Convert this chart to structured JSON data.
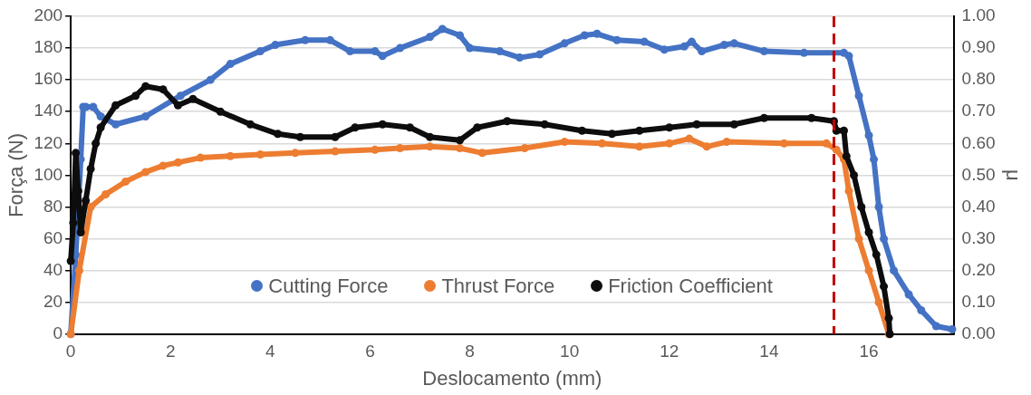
{
  "chart_data": {
    "type": "line",
    "xlabel": "Deslocamento (mm)",
    "ylabel": "Força (N)",
    "y2label": "μ",
    "xlim": [
      0,
      17.7
    ],
    "xticks": [
      0,
      2,
      4,
      6,
      8,
      10,
      12,
      14,
      16
    ],
    "ylim": [
      0,
      200
    ],
    "yticks": [
      0,
      20,
      40,
      60,
      80,
      100,
      120,
      140,
      160,
      180,
      200
    ],
    "y2lim": [
      0,
      1
    ],
    "y2ticks": [
      {
        "value": 0,
        "label": "0.00"
      },
      {
        "value": 0.1,
        "label": "0.10"
      },
      {
        "value": 0.2,
        "label": "0.20"
      },
      {
        "value": 0.3,
        "label": "0.30"
      },
      {
        "value": 0.4,
        "label": "0.40"
      },
      {
        "value": 0.5,
        "label": "0.50"
      },
      {
        "value": 0.6,
        "label": "0.60"
      },
      {
        "value": 0.7,
        "label": "0.70"
      },
      {
        "value": 0.8,
        "label": "0.80"
      },
      {
        "value": 0.9,
        "label": "0.90"
      },
      {
        "value": 1,
        "label": "1.00"
      }
    ],
    "grid": "y",
    "legend": "bottom",
    "marker": "circle",
    "ref_lines": [
      {
        "axis": "x",
        "value": 15.3,
        "label": null,
        "color": "#c00000",
        "line_style": "dashed"
      }
    ],
    "series": [
      {
        "name": "Cutting Force",
        "color": "#4472c4",
        "x": [
          0,
          0.1,
          0.2,
          0.25,
          0.3,
          0.45,
          0.6,
          0.9,
          1.5,
          2.2,
          2.8,
          3.2,
          3.8,
          4.1,
          4.7,
          5.2,
          5.6,
          6.1,
          6.25,
          6.6,
          7.2,
          7.45,
          7.8,
          8.0,
          8.6,
          9.0,
          9.4,
          9.9,
          10.3,
          10.55,
          10.95,
          11.5,
          11.9,
          12.3,
          12.45,
          12.65,
          13.1,
          13.3,
          13.9,
          14.7,
          15.5,
          15.6,
          15.8,
          16.0,
          16.1,
          16.2,
          16.3,
          16.5,
          16.8,
          17.05,
          17.35,
          17.67
        ],
        "values": [
          0,
          50,
          110,
          143,
          143,
          143,
          137,
          132,
          137,
          150,
          160,
          170,
          178,
          182,
          185,
          185,
          178,
          178,
          175,
          180,
          187,
          192,
          188,
          180,
          178,
          174,
          176,
          183,
          188,
          189,
          185,
          184,
          179,
          181,
          184,
          178,
          182,
          183,
          178,
          177,
          177,
          175,
          150,
          125,
          110,
          80,
          60,
          40,
          25,
          15,
          5,
          3
        ]
      },
      {
        "name": "Thrust Force",
        "color": "#ed7d31",
        "x": [
          0,
          0.17,
          0.4,
          0.7,
          1.1,
          1.5,
          1.85,
          2.15,
          2.6,
          3.2,
          3.8,
          4.5,
          5.3,
          6.1,
          6.6,
          7.2,
          7.8,
          8.25,
          9.1,
          9.9,
          10.65,
          11.4,
          12.0,
          12.4,
          12.75,
          13.15,
          14.3,
          15.15,
          15.35,
          15.5,
          15.6,
          15.8,
          16.0,
          16.2,
          16.4
        ],
        "values": [
          0,
          40,
          80,
          88,
          96,
          102,
          106,
          108,
          111,
          112,
          113,
          114,
          115,
          116,
          117,
          118,
          117,
          114,
          117,
          121,
          120,
          118,
          120,
          123,
          118,
          121,
          120,
          120,
          116,
          110,
          90,
          60,
          40,
          20,
          0
        ]
      },
      {
        "name": "Friction Coefficient",
        "color": "#0d0d0d",
        "axis": "y2",
        "x": [
          0,
          0.05,
          0.1,
          0.15,
          0.2,
          0.3,
          0.4,
          0.5,
          0.6,
          0.9,
          1.3,
          1.5,
          1.85,
          2.15,
          2.45,
          3.0,
          3.6,
          4.15,
          4.6,
          5.3,
          5.7,
          6.25,
          6.8,
          7.2,
          7.8,
          8.15,
          8.75,
          9.5,
          10.25,
          10.85,
          11.4,
          12.0,
          12.55,
          13.3,
          13.9,
          14.85,
          15.3,
          15.35,
          15.5,
          15.55,
          15.7,
          15.85,
          16.0,
          16.15,
          16.3,
          16.4,
          16.42
        ],
        "values": [
          0.23,
          0.35,
          0.57,
          0.45,
          0.32,
          0.42,
          0.52,
          0.6,
          0.65,
          0.72,
          0.75,
          0.78,
          0.77,
          0.72,
          0.74,
          0.7,
          0.66,
          0.63,
          0.62,
          0.62,
          0.65,
          0.66,
          0.65,
          0.62,
          0.61,
          0.65,
          0.67,
          0.66,
          0.64,
          0.63,
          0.64,
          0.65,
          0.66,
          0.66,
          0.68,
          0.68,
          0.67,
          0.64,
          0.64,
          0.56,
          0.5,
          0.4,
          0.32,
          0.25,
          0.15,
          0.05,
          0
        ]
      }
    ]
  }
}
